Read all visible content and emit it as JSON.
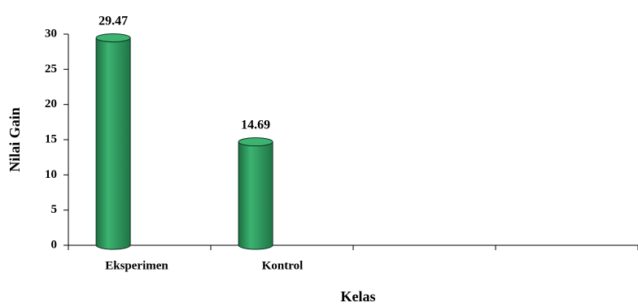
{
  "chart_data": {
    "type": "bar",
    "categories": [
      "Eksperimen",
      "Kontrol",
      null,
      null
    ],
    "values": [
      29.47,
      14.69,
      null,
      null
    ],
    "color": "#2e9e5e",
    "ylim": [
      0,
      30
    ],
    "yticks": [
      0,
      5,
      10,
      15,
      20,
      25,
      30
    ],
    "ylabel": "Nilai Gain",
    "xlabel": "Kelas"
  }
}
